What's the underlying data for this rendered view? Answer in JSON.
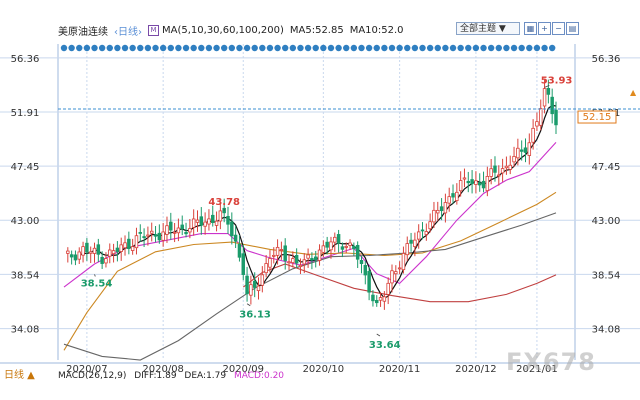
{
  "toolbar": {
    "instrument": "美原油连续",
    "timeframe": "‹日线›",
    "ma_params": "MA(5,10,30,60,100,200)",
    "ma5": "MA5:52.85",
    "ma10": "MA10:52.0",
    "topic_button": "全部主题 ▼"
  },
  "bottom": {
    "timeframe": "日线 ▲",
    "macd_params": "MACD(26,12,9)",
    "dif": "DIFF:1.89",
    "dea": "DEA:1.79",
    "macd": "MACD:0.20"
  },
  "watermark": "FX678",
  "colors": {
    "up": "#d9413a",
    "down": "#1b9b6b",
    "ma5": "#111111",
    "ma10": "#cc33cc",
    "ma30": "#cc8822",
    "ma60": "#666666",
    "ma200": "#c04040",
    "dots": "#2f7fc1",
    "grid": "#c9d8ee",
    "current_price": "#e07a1a"
  },
  "icons": [
    "grid-icon",
    "zoom-in-icon",
    "zoom-out-icon",
    "chart-type-icon"
  ],
  "chart_data": {
    "type": "candlestick",
    "y_ticks": [
      "56.36",
      "51.91",
      "47.45",
      "43.00",
      "38.54",
      "34.08"
    ],
    "ylim": [
      31.5,
      57.5
    ],
    "x_ticks": [
      "2020/07",
      "2020/08",
      "2020/09",
      "2020/10",
      "2020/11",
      "2020/12",
      "2021/01"
    ],
    "current_price": "52.15",
    "annotations": [
      {
        "label": "43.78",
        "x": "2020/08",
        "y": 43.78
      },
      {
        "label": "38.54",
        "x": "2020/07",
        "y": 38.54
      },
      {
        "label": "36.13",
        "x": "2020/09",
        "y": 36.13
      },
      {
        "label": "33.64",
        "x": "2020/11",
        "y": 33.64
      },
      {
        "label": "53.93",
        "x": "2021/01",
        "y": 53.93
      }
    ],
    "close_path": [
      [
        0,
        39.8
      ],
      [
        5,
        40.6
      ],
      [
        10,
        40.0
      ],
      [
        14,
        40.5
      ],
      [
        19,
        41.5
      ],
      [
        24,
        41.9
      ],
      [
        30,
        42.2
      ],
      [
        34,
        42.6
      ],
      [
        38,
        43.0
      ],
      [
        41,
        43.4
      ],
      [
        43,
        42.8
      ],
      [
        45,
        41.2
      ],
      [
        47,
        38.9
      ],
      [
        48,
        36.8
      ],
      [
        50,
        37.4
      ],
      [
        52,
        38.6
      ],
      [
        54,
        40.1
      ],
      [
        57,
        40.3
      ],
      [
        59,
        39.9
      ],
      [
        61,
        39.5
      ],
      [
        63,
        39.4
      ],
      [
        65,
        40.0
      ],
      [
        67,
        40.5
      ],
      [
        70,
        41.1
      ],
      [
        73,
        41.2
      ],
      [
        76,
        40.6
      ],
      [
        78,
        39.1
      ],
      [
        80,
        37.6
      ],
      [
        82,
        35.9
      ],
      [
        84,
        36.8
      ],
      [
        86,
        38.6
      ],
      [
        88,
        39.6
      ],
      [
        91,
        41.1
      ],
      [
        95,
        42.6
      ],
      [
        98,
        43.6
      ],
      [
        102,
        45.3
      ],
      [
        106,
        46.3
      ],
      [
        110,
        46.0
      ],
      [
        113,
        47.0
      ],
      [
        116,
        47.4
      ],
      [
        118,
        48.2
      ],
      [
        120,
        48.5
      ],
      [
        122,
        49.6
      ],
      [
        124,
        51.2
      ],
      [
        126,
        53.4
      ],
      [
        127,
        53.0
      ],
      [
        129,
        51.3
      ]
    ],
    "ma_lines": [
      {
        "name": "MA10",
        "color_key": "ma10",
        "points": [
          [
            0,
            37.5
          ],
          [
            8,
            39.4
          ],
          [
            16,
            40.7
          ],
          [
            26,
            41.3
          ],
          [
            36,
            41.9
          ],
          [
            43,
            41.9
          ],
          [
            48,
            40.5
          ],
          [
            54,
            39.9
          ],
          [
            62,
            39.3
          ],
          [
            70,
            40.1
          ],
          [
            76,
            40.7
          ],
          [
            82,
            38.6
          ],
          [
            88,
            37.8
          ],
          [
            95,
            40.0
          ],
          [
            103,
            43.0
          ],
          [
            110,
            45.2
          ],
          [
            116,
            46.3
          ],
          [
            122,
            47.0
          ],
          [
            129,
            49.4
          ]
        ]
      },
      {
        "name": "MA30",
        "color_key": "ma30",
        "points": [
          [
            0,
            32.3
          ],
          [
            6,
            35.4
          ],
          [
            14,
            38.8
          ],
          [
            24,
            40.4
          ],
          [
            34,
            41.0
          ],
          [
            44,
            41.2
          ],
          [
            54,
            40.6
          ],
          [
            64,
            40.2
          ],
          [
            74,
            40.3
          ],
          [
            84,
            40.1
          ],
          [
            94,
            40.3
          ],
          [
            104,
            41.3
          ],
          [
            114,
            42.8
          ],
          [
            124,
            44.3
          ],
          [
            129,
            45.3
          ]
        ]
      },
      {
        "name": "MA60",
        "color_key": "ma60",
        "points": [
          [
            0,
            32.8
          ],
          [
            10,
            31.8
          ],
          [
            20,
            31.5
          ],
          [
            30,
            33.1
          ],
          [
            40,
            35.3
          ],
          [
            50,
            37.4
          ],
          [
            60,
            39.0
          ],
          [
            70,
            40.0
          ],
          [
            80,
            40.1
          ],
          [
            90,
            40.3
          ],
          [
            100,
            40.6
          ],
          [
            110,
            41.6
          ],
          [
            120,
            42.6
          ],
          [
            129,
            43.6
          ]
        ]
      },
      {
        "name": "MA200",
        "color_key": "ma200",
        "points": [
          [
            47,
            37.5
          ],
          [
            52,
            38.7
          ],
          [
            58,
            39.4
          ],
          [
            66,
            38.5
          ],
          [
            76,
            37.4
          ],
          [
            86,
            36.8
          ],
          [
            96,
            36.3
          ],
          [
            106,
            36.3
          ],
          [
            116,
            36.9
          ],
          [
            124,
            37.8
          ],
          [
            129,
            38.5
          ]
        ]
      }
    ]
  }
}
